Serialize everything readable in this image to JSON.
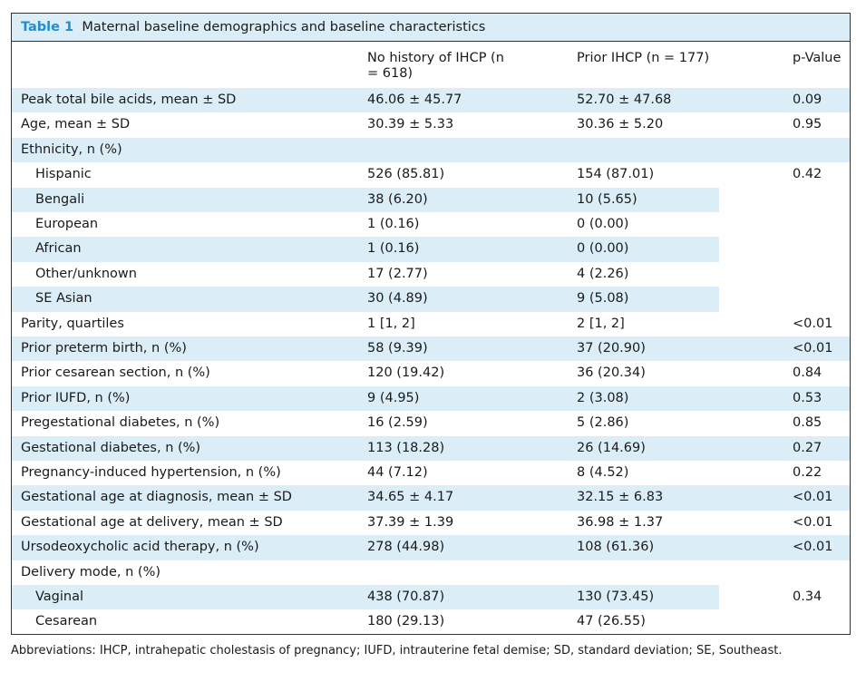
{
  "title": {
    "label": "Table 1",
    "text": "Maternal baseline demographics and baseline characteristics"
  },
  "table": {
    "columns": [
      "No history of IHCP (n = 618)",
      "Prior IHCP (n = 177)",
      "p-Value"
    ],
    "rows": [
      {
        "label": "Peak total bile acids, mean ± SD",
        "values": [
          "46.06 ± 45.77",
          "52.70 ± 47.68"
        ],
        "p": "0.09"
      },
      {
        "label": "Age, mean ± SD",
        "values": [
          "30.39 ± 5.33",
          "30.36 ± 5.20"
        ],
        "p": "0.95"
      },
      {
        "label": "Ethnicity, n (%)",
        "p": "0.42",
        "rows": [
          {
            "label": "Hispanic",
            "values": [
              "526 (85.81)",
              "154 (87.01)"
            ]
          },
          {
            "label": "Bengali",
            "values": [
              "38 (6.20)",
              "10 (5.65)"
            ]
          },
          {
            "label": "European",
            "values": [
              "1 (0.16)",
              "0 (0.00)"
            ]
          },
          {
            "label": "African",
            "values": [
              "1 (0.16)",
              "0 (0.00)"
            ]
          },
          {
            "label": "Other/unknown",
            "values": [
              "17 (2.77)",
              "4 (2.26)"
            ]
          },
          {
            "label": "SE Asian",
            "values": [
              "30 (4.89)",
              "9 (5.08)"
            ]
          }
        ]
      },
      {
        "label": "Parity, quartiles",
        "values": [
          "1 [1, 2]",
          "2 [1, 2]"
        ],
        "p": "<0.01"
      },
      {
        "label": "Prior preterm birth, n (%)",
        "values": [
          "58 (9.39)",
          "37 (20.90)"
        ],
        "p": "<0.01"
      },
      {
        "label": "Prior cesarean section, n (%)",
        "values": [
          "120 (19.42)",
          "36 (20.34)"
        ],
        "p": "0.84"
      },
      {
        "label": "Prior IUFD, n (%)",
        "values": [
          "9 (4.95)",
          "2 (3.08)"
        ],
        "p": "0.53"
      },
      {
        "label": "Pregestational diabetes, n (%)",
        "values": [
          "16 (2.59)",
          "5 (2.86)"
        ],
        "p": "0.85"
      },
      {
        "label": "Gestational diabetes, n (%)",
        "values": [
          "113 (18.28)",
          "26 (14.69)"
        ],
        "p": "0.27"
      },
      {
        "label": "Pregnancy-induced hypertension, n (%)",
        "values": [
          "44 (7.12)",
          "8 (4.52)"
        ],
        "p": "0.22"
      },
      {
        "label": "Gestational age at diagnosis, mean ± SD",
        "values": [
          "34.65 ± 4.17",
          "32.15 ± 6.83"
        ],
        "p": "<0.01"
      },
      {
        "label": "Gestational age at delivery, mean ± SD",
        "values": [
          "37.39 ± 1.39",
          "36.98 ± 1.37"
        ],
        "p": "<0.01"
      },
      {
        "label": "Ursodeoxycholic acid therapy, n (%)",
        "values": [
          "278 (44.98)",
          "108 (61.36)"
        ],
        "p": "<0.01"
      },
      {
        "label": "Delivery mode, n (%)",
        "p": "0.34",
        "rows": [
          {
            "label": "Vaginal",
            "values": [
              "438 (70.87)",
              "130 (73.45)"
            ]
          },
          {
            "label": "Cesarean",
            "values": [
              "180 (29.13)",
              "47 (26.55)"
            ]
          }
        ]
      }
    ]
  },
  "footnote": "Abbreviations: IHCP, intrahepatic cholestasis of pregnancy; IUFD, intrauterine fetal demise; SD, standard deviation; SE, Southeast."
}
